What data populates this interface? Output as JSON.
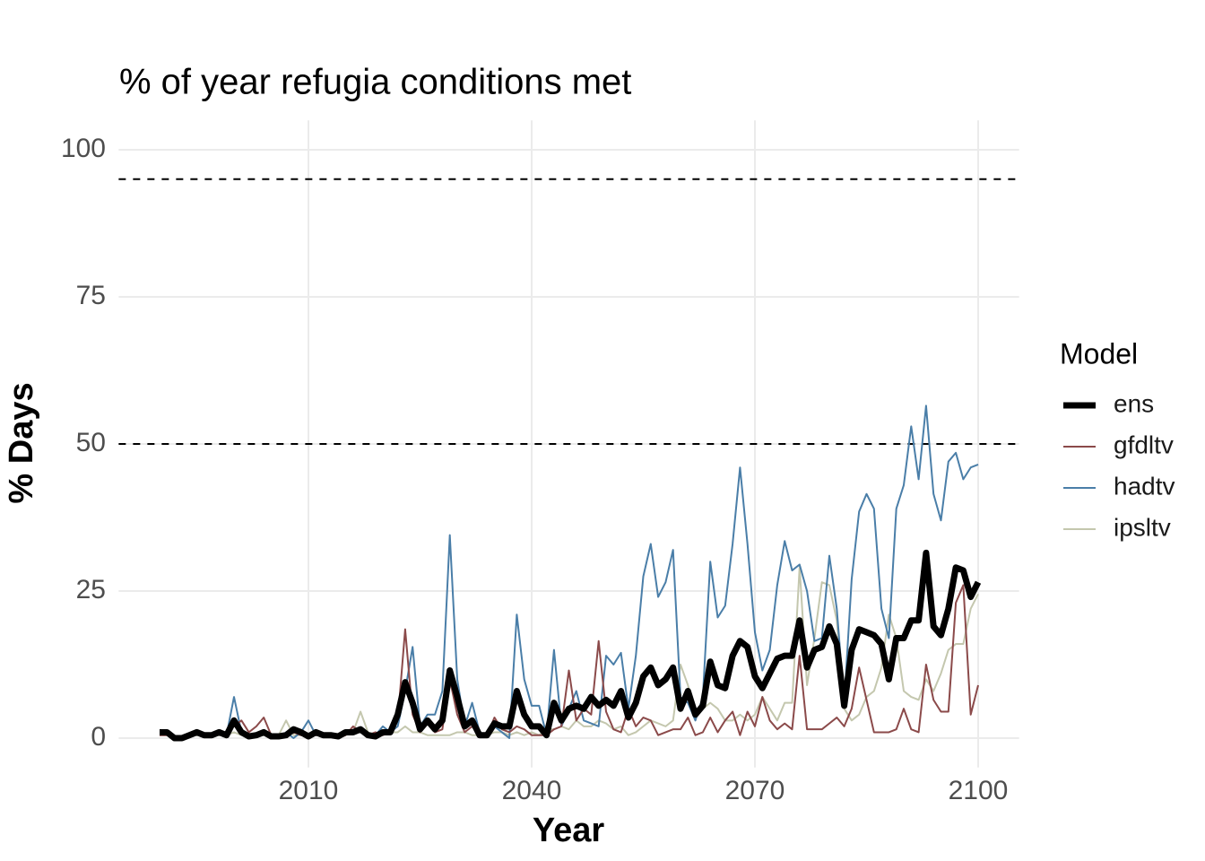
{
  "chart_data": {
    "type": "line",
    "title": "% of year refugia conditions met",
    "x_label": "Year",
    "y_label": "% Days",
    "legend_title": "Model",
    "x": [
      1990,
      1991,
      1992,
      1993,
      1994,
      1995,
      1996,
      1997,
      1998,
      1999,
      2000,
      2001,
      2002,
      2003,
      2004,
      2005,
      2006,
      2007,
      2008,
      2009,
      2010,
      2011,
      2012,
      2013,
      2014,
      2015,
      2016,
      2017,
      2018,
      2019,
      2020,
      2021,
      2022,
      2023,
      2024,
      2025,
      2026,
      2027,
      2028,
      2029,
      2030,
      2031,
      2032,
      2033,
      2034,
      2035,
      2036,
      2037,
      2038,
      2039,
      2040,
      2041,
      2042,
      2043,
      2044,
      2045,
      2046,
      2047,
      2048,
      2049,
      2050,
      2051,
      2052,
      2053,
      2054,
      2055,
      2056,
      2057,
      2058,
      2059,
      2060,
      2061,
      2062,
      2063,
      2064,
      2065,
      2066,
      2067,
      2068,
      2069,
      2070,
      2071,
      2072,
      2073,
      2074,
      2075,
      2076,
      2077,
      2078,
      2079,
      2080,
      2081,
      2082,
      2083,
      2084,
      2085,
      2086,
      2087,
      2088,
      2089,
      2090,
      2091,
      2092,
      2093,
      2094,
      2095,
      2096,
      2097,
      2098,
      2099,
      2100
    ],
    "series": [
      {
        "name": "ens",
        "color": "#000000",
        "width": 7,
        "values": [
          1,
          1,
          0,
          0,
          0.5,
          1,
          0.5,
          0.5,
          1,
          0.5,
          3,
          1,
          0.3,
          0.5,
          1,
          0.3,
          0.3,
          0.5,
          1.5,
          1,
          0.3,
          1,
          0.5,
          0.5,
          0.3,
          1,
          1,
          1.5,
          0.5,
          0.3,
          1,
          1,
          4,
          9.5,
          6,
          1.5,
          3,
          1.5,
          3,
          11.5,
          7,
          2,
          3,
          0.5,
          0.5,
          2.5,
          2,
          2,
          8,
          4,
          2,
          2,
          0.5,
          6,
          3,
          5,
          5.5,
          5,
          7,
          5.5,
          6.5,
          5.5,
          8,
          3.5,
          6,
          10.5,
          12,
          9,
          10,
          12,
          5,
          8,
          4,
          5.5,
          13,
          9,
          8.5,
          14,
          16.5,
          15.5,
          10.5,
          8.5,
          11,
          13.5,
          14,
          14,
          20,
          12,
          15,
          15.5,
          19,
          16,
          5.5,
          15,
          18.5,
          18,
          17.5,
          16,
          10,
          17,
          17,
          20,
          20,
          31.5,
          19,
          17.5,
          22,
          29,
          28.5,
          24,
          26.5
        ]
      },
      {
        "name": "gfdltv",
        "color": "#8b4a4a",
        "width": 2,
        "values": [
          0.5,
          0.5,
          0,
          0,
          0.5,
          1,
          0.5,
          0.5,
          1,
          1,
          2,
          3,
          1,
          2,
          3.5,
          0.5,
          0.5,
          0.5,
          1,
          0.5,
          0.5,
          0.5,
          0.5,
          0.5,
          0,
          0.5,
          2,
          1,
          0.5,
          1,
          0.5,
          1,
          3,
          18.5,
          4,
          1,
          2.5,
          1,
          1.5,
          10,
          4,
          1,
          2,
          0.5,
          0.5,
          3.5,
          1.5,
          1,
          2,
          1.5,
          0.5,
          0.5,
          0.5,
          1.5,
          2,
          11.5,
          3,
          5,
          4,
          16.5,
          4.5,
          1.5,
          1,
          5,
          2,
          3.5,
          3,
          0.5,
          1,
          1.5,
          1.5,
          3.5,
          0.5,
          1,
          3.5,
          1,
          3,
          4.5,
          0.5,
          4.5,
          2,
          7,
          3,
          1.5,
          2.5,
          1.5,
          14,
          1.5,
          1.5,
          1.5,
          2.5,
          3.5,
          2,
          5,
          12,
          6.5,
          1,
          1,
          1,
          1.5,
          5,
          1.5,
          1,
          12.5,
          6.5,
          4.5,
          4.5,
          23,
          26,
          4,
          9
        ]
      },
      {
        "name": "hadtv",
        "color": "#4a7ea8",
        "width": 2,
        "values": [
          1,
          1,
          0,
          0,
          0.5,
          1,
          0.5,
          0.5,
          1,
          0.5,
          7,
          1,
          0,
          0.5,
          1,
          0,
          0,
          1,
          0,
          1,
          3,
          0.5,
          0.5,
          0.5,
          0,
          1,
          1,
          1,
          0.5,
          0.5,
          2,
          1,
          2,
          8,
          15.5,
          2,
          4,
          4,
          8,
          34.5,
          10,
          2,
          6,
          1,
          0.5,
          2,
          1,
          0,
          21,
          10,
          5.5,
          5.5,
          0.5,
          15,
          2,
          5,
          8,
          3,
          2.5,
          2,
          14,
          12.5,
          14.5,
          5,
          14,
          27.5,
          33,
          24,
          26.5,
          32,
          7,
          6,
          3,
          7,
          30,
          20.5,
          22.5,
          33,
          46,
          33,
          18,
          11.5,
          15,
          26,
          33.5,
          28.5,
          29.5,
          25,
          16.5,
          17,
          31,
          22,
          6,
          27,
          38.5,
          41.5,
          39,
          22,
          17,
          39,
          43,
          53,
          44,
          56.5,
          41.5,
          37,
          47,
          48.5,
          44,
          46,
          46.5
        ]
      },
      {
        "name": "ipsltv",
        "color": "#c4c7ae",
        "width": 2,
        "values": [
          0.5,
          0.5,
          0,
          0,
          0.5,
          0.5,
          0.5,
          0.5,
          0.5,
          0.5,
          1,
          0.5,
          0.5,
          0.5,
          0.5,
          0.5,
          0.5,
          3,
          0.5,
          0.5,
          0.5,
          0.5,
          0.5,
          0.5,
          0.5,
          0.5,
          1,
          4.5,
          1,
          0.5,
          1,
          1,
          1,
          2,
          1,
          1,
          0.5,
          0.5,
          0.5,
          0.5,
          1,
          1,
          0.5,
          0.5,
          0.5,
          1,
          1,
          0.5,
          1,
          0.5,
          1,
          0.5,
          1.5,
          1.5,
          2,
          1.5,
          3,
          2,
          2,
          3,
          2.5,
          1.5,
          2,
          0.5,
          1,
          2,
          3,
          2.5,
          2,
          3,
          12.5,
          9,
          4,
          5,
          6,
          5,
          3,
          3,
          4,
          3,
          4,
          7,
          5,
          3,
          6,
          6,
          29,
          9,
          17,
          26.5,
          26,
          20,
          5,
          3,
          4,
          7,
          8,
          12,
          21,
          17,
          8,
          7,
          6.5,
          10,
          8,
          11,
          15,
          16,
          16,
          22,
          24.5
        ]
      }
    ],
    "hlines": [
      95,
      50
    ],
    "xlim": [
      1984.5,
      2105.5
    ],
    "ylim": [
      -5,
      105
    ],
    "xticks": [
      2010,
      2040,
      2070,
      2100
    ],
    "yticks": [
      0,
      25,
      50,
      75,
      100
    ],
    "grid": true
  }
}
